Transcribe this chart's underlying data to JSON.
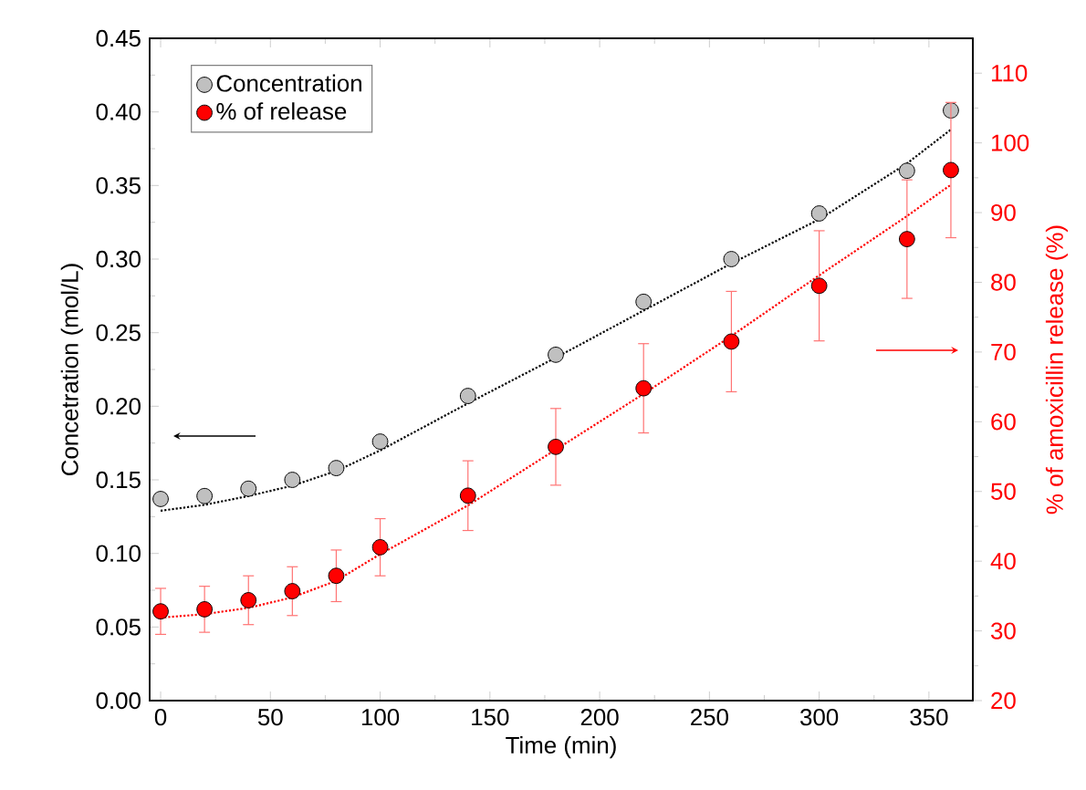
{
  "chart_data": {
    "type": "scatter",
    "xlabel": "Time (min)",
    "ylabel": "Concetration (mol/L)",
    "y2label": "% of amoxicillin release (%)",
    "xlim": [
      -5,
      370
    ],
    "xticks": [
      0,
      50,
      100,
      150,
      200,
      250,
      300,
      350
    ],
    "ylim": [
      0,
      0.45
    ],
    "yticks": [
      {
        "value": 0,
        "label": "0.00"
      },
      {
        "value": 0.05,
        "label": "0.05"
      },
      {
        "value": 0.1,
        "label": "0.10"
      },
      {
        "value": 0.15,
        "label": "0.15"
      },
      {
        "value": 0.2,
        "label": "0.20"
      },
      {
        "value": 0.25,
        "label": "0.25"
      },
      {
        "value": 0.3,
        "label": "0.30"
      },
      {
        "value": 0.35,
        "label": "0.35"
      },
      {
        "value": 0.4,
        "label": "0.40"
      },
      {
        "value": 0.45,
        "label": "0.45"
      }
    ],
    "y2lim": [
      20,
      115
    ],
    "y2ticks": [
      20,
      30,
      40,
      50,
      60,
      70,
      80,
      90,
      100,
      110
    ],
    "legend": "top left",
    "x": [
      0,
      20,
      40,
      60,
      80,
      100,
      140,
      180,
      220,
      260,
      300,
      340,
      360
    ],
    "series": [
      {
        "type": "line",
        "color": "#000000",
        "line_style": "dotted",
        "marker": "none",
        "x": [
          0,
          20,
          40,
          60,
          80,
          100,
          140,
          180,
          220,
          260,
          300,
          340,
          360
        ],
        "values": [
          0.129,
          0.133,
          0.139,
          0.146,
          0.156,
          0.17,
          0.202,
          0.233,
          0.265,
          0.297,
          0.327,
          0.365,
          0.388
        ]
      },
      {
        "type": "line",
        "color": "#ff0000",
        "line_style": "dotted",
        "marker": "none",
        "axis": "y2",
        "x": [
          0,
          20,
          40,
          60,
          80,
          100,
          140,
          180,
          220,
          260,
          300,
          340,
          360
        ],
        "values": [
          31.9,
          32.4,
          33.3,
          34.8,
          37.2,
          41.0,
          48.0,
          56.0,
          64.0,
          72.3,
          81.0,
          89.5,
          94.0
        ]
      },
      {
        "name": "Concentration",
        "color": "#c0c0c0",
        "marker": "circle",
        "values": [
          0.137,
          0.139,
          0.144,
          0.15,
          0.158,
          0.176,
          0.207,
          0.235,
          0.271,
          0.3,
          0.331,
          0.36,
          0.401
        ]
      },
      {
        "name": "% of release",
        "color": "#ff0000",
        "marker": "circle",
        "axis": "y2",
        "values": [
          32.8,
          33.1,
          34.4,
          35.7,
          37.9,
          42.0,
          49.4,
          56.4,
          64.8,
          71.5,
          79.5,
          86.2,
          96.1
        ],
        "errors": [
          3.3,
          3.3,
          3.5,
          3.5,
          3.7,
          4.1,
          5.0,
          5.5,
          6.4,
          7.2,
          7.9,
          8.5,
          9.7
        ]
      }
    ]
  }
}
